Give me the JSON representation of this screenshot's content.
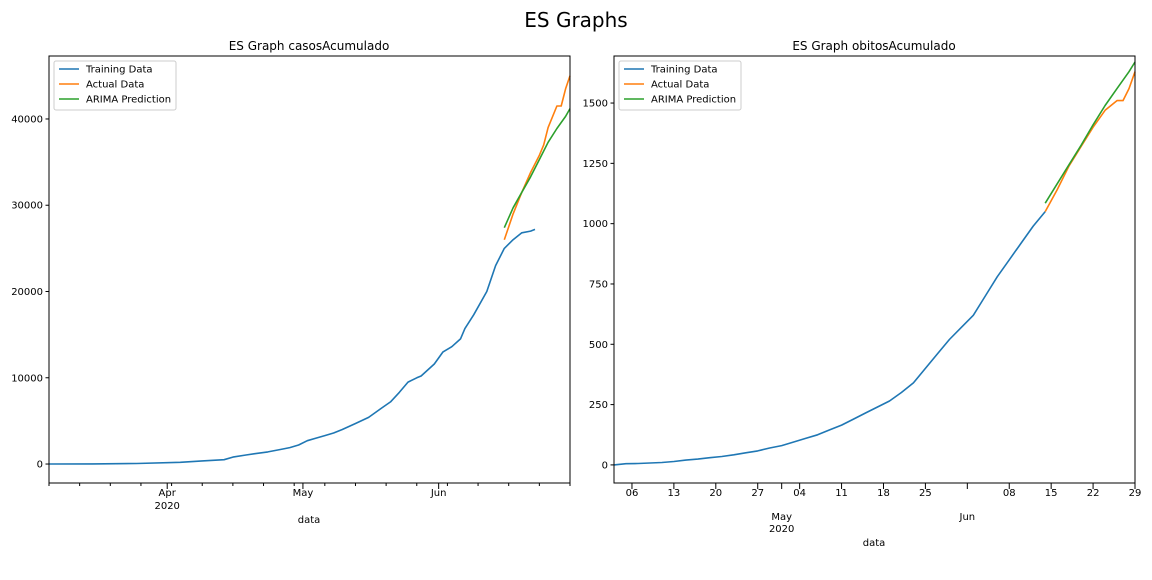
{
  "figure_title": "ES Graphs",
  "colors": {
    "training": "#1f77b4",
    "actual": "#ff7f0e",
    "prediction": "#2ca02c",
    "axis": "#000000"
  },
  "chart_data": [
    {
      "type": "line",
      "title": "ES Graph casosAcumulado",
      "xlabel": "data",
      "ylabel": "",
      "x_unit": "days since 2020-02-28",
      "xlim": [
        0,
        119
      ],
      "ylim": [
        -2200,
        47300
      ],
      "yticks": [
        0,
        10000,
        20000,
        30000,
        40000
      ],
      "ytick_labels": [
        "0",
        "10000",
        "20000",
        "30000",
        "40000"
      ],
      "xticks_major": [
        {
          "x": 27,
          "label": "Apr",
          "sublabel": "2020"
        },
        {
          "x": 58,
          "label": "May",
          "sublabel": ""
        },
        {
          "x": 89,
          "label": "Jun",
          "sublabel": ""
        }
      ],
      "xticks_minor": [],
      "legend": {
        "position": "top-left",
        "entries": [
          "Training Data",
          "Actual Data",
          "ARIMA Prediction"
        ]
      },
      "series": [
        {
          "name": "Training Data",
          "color_key": "training",
          "x": [
            0,
            10,
            20,
            30,
            35,
            40,
            42,
            45,
            47,
            50,
            53,
            55,
            57,
            59,
            61,
            63,
            65,
            67,
            70,
            73,
            76,
            78,
            80,
            82,
            84,
            85,
            88,
            90,
            92,
            94,
            95,
            97,
            100,
            102,
            104,
            106,
            108,
            110,
            111
          ],
          "y": [
            0,
            10,
            60,
            200,
            360,
            500,
            800,
            1050,
            1200,
            1400,
            1700,
            1900,
            2200,
            2700,
            3000,
            3300,
            3600,
            4000,
            4700,
            5400,
            6500,
            7200,
            8300,
            9500,
            10000,
            10200,
            11600,
            13000,
            13600,
            14500,
            15700,
            17300,
            20000,
            23000,
            25000,
            26000,
            26800,
            27000,
            27200
          ]
        },
        {
          "name": "Actual Data",
          "color_key": "actual",
          "x": [
            104,
            106,
            108,
            110,
            111,
            112,
            113,
            114,
            116,
            117,
            118,
            119
          ],
          "y": [
            26000,
            29000,
            31500,
            33800,
            34800,
            35800,
            37000,
            39000,
            41500,
            41500,
            43500,
            45000
          ]
        },
        {
          "name": "ARIMA Prediction",
          "color_key": "prediction",
          "x": [
            104,
            106,
            108,
            110,
            112,
            114,
            116,
            118,
            119
          ],
          "y": [
            27400,
            29700,
            31500,
            33300,
            35300,
            37300,
            38900,
            40300,
            41200
          ]
        }
      ]
    },
    {
      "type": "line",
      "title": "ES Graph obitosAcumulado",
      "xlabel": "data",
      "ylabel": "",
      "x_unit": "days since 2020-04-03",
      "xlim": [
        0,
        87
      ],
      "ylim": [
        -75,
        1695
      ],
      "yticks": [
        0,
        250,
        500,
        750,
        1000,
        1250,
        1500
      ],
      "ytick_labels": [
        "0",
        "250",
        "500",
        "750",
        "1000",
        "1250",
        "1500"
      ],
      "xticks_major": [
        {
          "x": 28,
          "label": "May",
          "sublabel": "2020"
        },
        {
          "x": 59,
          "label": "Jun",
          "sublabel": ""
        }
      ],
      "xticks_minor": [
        {
          "x": 3,
          "label": "06"
        },
        {
          "x": 10,
          "label": "13"
        },
        {
          "x": 17,
          "label": "20"
        },
        {
          "x": 24,
          "label": "27"
        },
        {
          "x": 31,
          "label": "04"
        },
        {
          "x": 38,
          "label": "11"
        },
        {
          "x": 45,
          "label": "18"
        },
        {
          "x": 52,
          "label": "25"
        },
        {
          "x": 66,
          "label": "08"
        },
        {
          "x": 73,
          "label": "15"
        },
        {
          "x": 80,
          "label": "22"
        },
        {
          "x": 87,
          "label": "29"
        }
      ],
      "legend": {
        "position": "top-left",
        "entries": [
          "Training Data",
          "Actual Data",
          "ARIMA Prediction"
        ]
      },
      "series": [
        {
          "name": "Training Data",
          "color_key": "training",
          "x": [
            0,
            2,
            4,
            6,
            8,
            10,
            12,
            14,
            16,
            18,
            20,
            22,
            24,
            26,
            28,
            30,
            32,
            34,
            36,
            38,
            40,
            42,
            44,
            46,
            48,
            50,
            52,
            54,
            56,
            58,
            60,
            62,
            64,
            66,
            68,
            70,
            72
          ],
          "y": [
            0,
            5,
            6,
            8,
            10,
            14,
            20,
            24,
            30,
            35,
            42,
            50,
            58,
            70,
            80,
            95,
            110,
            125,
            145,
            165,
            190,
            215,
            240,
            265,
            300,
            340,
            400,
            460,
            520,
            570,
            620,
            700,
            780,
            850,
            920,
            990,
            1050
          ]
        },
        {
          "name": "Actual Data",
          "color_key": "actual",
          "x": [
            72,
            74,
            76,
            78,
            80,
            82,
            84,
            85,
            86,
            87
          ],
          "y": [
            1050,
            1140,
            1240,
            1320,
            1400,
            1470,
            1510,
            1510,
            1560,
            1630
          ]
        },
        {
          "name": "ARIMA Prediction",
          "color_key": "prediction",
          "x": [
            72,
            74,
            76,
            78,
            80,
            82,
            84,
            86,
            87
          ],
          "y": [
            1085,
            1165,
            1245,
            1325,
            1410,
            1490,
            1560,
            1630,
            1670
          ]
        }
      ]
    }
  ]
}
